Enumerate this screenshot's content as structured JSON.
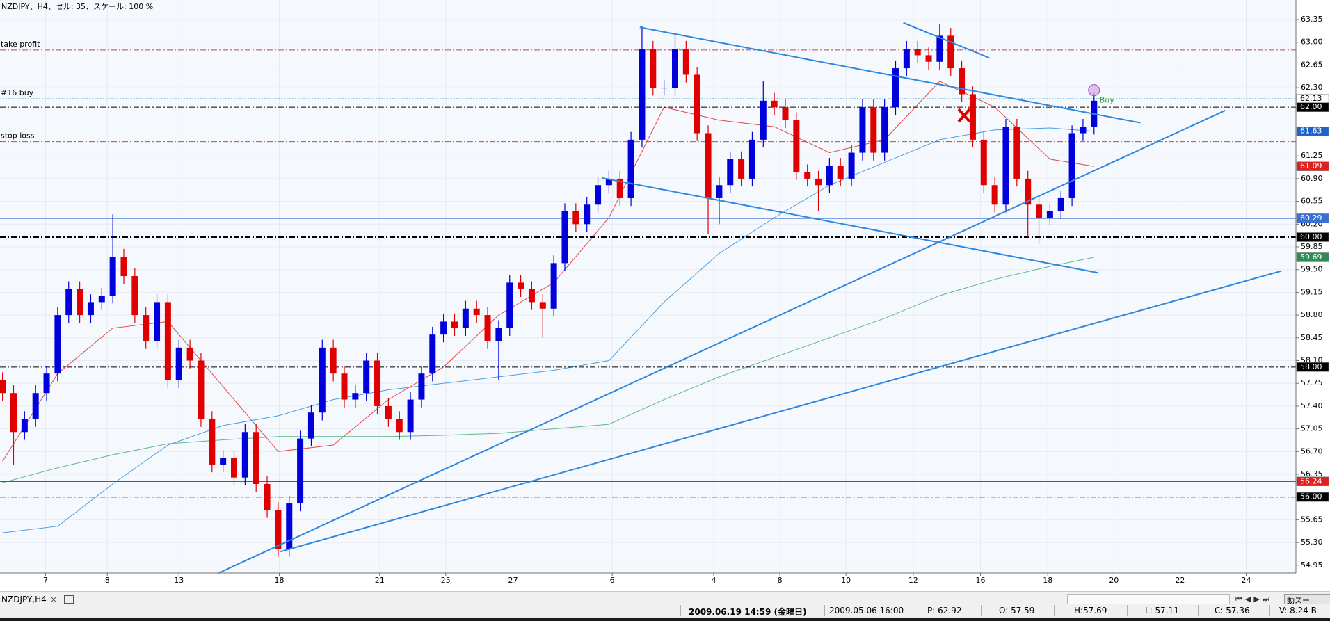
{
  "chart_data": {
    "type": "candlestick",
    "title": "NZDJPY、H4、セル: 35、スケール: 100 %",
    "xlim": [
      -0.23,
      117.31
    ],
    "ylim": [
      54.83,
      63.65
    ],
    "xticks": [
      {
        "value": 3.9,
        "label": "7"
      },
      {
        "value": 9.5,
        "label": "8"
      },
      {
        "value": 16,
        "label": "13"
      },
      {
        "value": 25.1,
        "label": "18"
      },
      {
        "value": 34.2,
        "label": "21"
      },
      {
        "value": 40.2,
        "label": "25"
      },
      {
        "value": 46.3,
        "label": "27"
      },
      {
        "value": 55.3,
        "label": "6"
      },
      {
        "value": 64.5,
        "label": "4"
      },
      {
        "value": 70.5,
        "label": "8"
      },
      {
        "value": 76.5,
        "label": "10"
      },
      {
        "value": 82.6,
        "label": "12"
      },
      {
        "value": 88.7,
        "label": "16"
      },
      {
        "value": 94.8,
        "label": "18"
      },
      {
        "value": 100.8,
        "label": "20"
      },
      {
        "value": 106.8,
        "label": "22"
      },
      {
        "value": 112.8,
        "label": "24"
      }
    ],
    "yticks": [
      63.35,
      {
        "value": 63,
        "label": "63.00"
      },
      62.65,
      {
        "value": 62.3,
        "label": "62.30"
      },
      61.25,
      {
        "value": 60.9,
        "label": "60.90"
      },
      60.55,
      {
        "value": 60.2,
        "label": "60.20"
      },
      59.85,
      {
        "value": 59.5,
        "label": "59.50"
      },
      59.15,
      {
        "value": 58.8,
        "label": "58.80"
      },
      58.45,
      {
        "value": 58.1,
        "label": "58.10"
      },
      57.75,
      {
        "value": 57.4,
        "label": "57.40"
      },
      57.05,
      {
        "value": 56.7,
        "label": "56.70"
      },
      56.35,
      55.65,
      {
        "value": 55.3,
        "label": "55.30"
      },
      54.95
    ],
    "grid": true,
    "up_color": "#0000dd",
    "down_color": "#e00000",
    "open": [
      57.8,
      57.6,
      57.0,
      57.2,
      57.6,
      57.9,
      58.8,
      59.2,
      58.8,
      59.0,
      59.1,
      59.7,
      59.4,
      58.8,
      58.4,
      59.0,
      57.8,
      58.3,
      58.1,
      57.2,
      56.5,
      56.6,
      56.3,
      57.0,
      56.2,
      55.8,
      55.2,
      55.9,
      56.9,
      57.3,
      58.3,
      57.9,
      57.5,
      57.6,
      58.1,
      57.4,
      57.2,
      57.0,
      57.5,
      57.9,
      58.5,
      58.7,
      58.6,
      58.9,
      58.8,
      58.4,
      58.6,
      59.3,
      59.2,
      59.0,
      58.9,
      59.6,
      60.4,
      60.2,
      60.5,
      60.8,
      60.9,
      60.6,
      61.5,
      62.9,
      62.3,
      62.3,
      62.9,
      62.5,
      61.6,
      60.6,
      60.8,
      61.2,
      60.9,
      61.5,
      62.1,
      62.0,
      61.8,
      61.0,
      60.9,
      60.8,
      61.1,
      60.9,
      61.3,
      62.0,
      61.3,
      62.0,
      62.6,
      62.9,
      62.8,
      62.7,
      63.1,
      62.6,
      62.2,
      61.5,
      60.8,
      60.5,
      61.7,
      60.9,
      60.5,
      60.3,
      60.4,
      60.6,
      61.6,
      61.7
    ],
    "high": [
      57.92,
      57.72,
      57.32,
      57.72,
      58.02,
      58.92,
      59.32,
      59.32,
      59.12,
      59.22,
      60.35,
      59.82,
      59.52,
      58.92,
      59.12,
      59.12,
      58.42,
      58.42,
      58.22,
      57.32,
      56.72,
      56.72,
      57.12,
      57.12,
      56.32,
      55.92,
      56.02,
      57.02,
      57.42,
      58.42,
      58.42,
      58.02,
      57.72,
      58.22,
      58.22,
      57.52,
      57.32,
      57.62,
      58.02,
      58.62,
      58.82,
      58.82,
      59.02,
      59.02,
      58.92,
      58.72,
      59.42,
      59.42,
      59.32,
      59.12,
      59.72,
      60.52,
      60.52,
      60.62,
      60.92,
      61.02,
      61.02,
      61.62,
      63.25,
      63.02,
      62.42,
      63.1,
      63.02,
      62.62,
      61.72,
      60.92,
      61.32,
      61.32,
      61.62,
      62.4,
      62.22,
      62.12,
      61.92,
      61.12,
      61.02,
      61.22,
      61.22,
      61.42,
      62.12,
      62.12,
      62.12,
      62.72,
      63.02,
      63.02,
      62.92,
      63.28,
      63.22,
      62.72,
      62.32,
      61.62,
      60.92,
      61.82,
      61.82,
      61.02,
      60.62,
      60.52,
      60.72,
      61.72,
      61.82,
      62.22
    ],
    "low": [
      57.48,
      56.5,
      56.88,
      57.08,
      57.48,
      57.78,
      58.68,
      58.68,
      58.68,
      58.88,
      58.98,
      59.28,
      58.68,
      58.28,
      58.28,
      57.68,
      57.68,
      57.98,
      57.08,
      56.38,
      56.38,
      56.18,
      56.18,
      56.08,
      55.68,
      55.08,
      55.08,
      55.78,
      56.78,
      57.18,
      57.78,
      57.38,
      57.38,
      57.48,
      57.28,
      57.08,
      56.88,
      56.88,
      57.38,
      57.78,
      58.38,
      58.48,
      58.48,
      58.68,
      58.28,
      57.8,
      58.48,
      59.08,
      58.88,
      58.45,
      58.78,
      59.48,
      60.08,
      60.08,
      60.38,
      60.68,
      60.48,
      60.48,
      61.38,
      62.18,
      62.18,
      62.18,
      62.38,
      61.48,
      60.05,
      60.2,
      60.68,
      60.78,
      60.78,
      61.38,
      61.88,
      61.68,
      60.88,
      60.78,
      60.4,
      60.68,
      60.78,
      60.78,
      61.18,
      61.18,
      61.18,
      61.88,
      62.48,
      62.68,
      62.58,
      62.58,
      62.48,
      62.08,
      61.38,
      60.68,
      60.38,
      60.38,
      60.78,
      60.0,
      59.9,
      60.18,
      60.28,
      60.48,
      61.48,
      61.58
    ],
    "close": [
      57.6,
      57.0,
      57.2,
      57.6,
      57.9,
      58.8,
      59.2,
      58.8,
      59.0,
      59.1,
      59.7,
      59.4,
      58.8,
      58.4,
      59.0,
      57.8,
      58.3,
      58.1,
      57.2,
      56.5,
      56.6,
      56.3,
      57.0,
      56.2,
      55.8,
      55.2,
      55.9,
      56.9,
      57.3,
      58.3,
      57.9,
      57.5,
      57.6,
      58.1,
      57.4,
      57.2,
      57.0,
      57.5,
      57.9,
      58.5,
      58.7,
      58.6,
      58.9,
      58.8,
      58.4,
      58.6,
      59.3,
      59.2,
      59.0,
      58.9,
      59.6,
      60.4,
      60.2,
      60.5,
      60.8,
      60.9,
      60.6,
      61.5,
      62.9,
      62.3,
      62.3,
      62.9,
      62.5,
      61.6,
      60.6,
      60.8,
      61.2,
      60.9,
      61.5,
      62.1,
      62.0,
      61.8,
      61.0,
      60.9,
      60.8,
      61.1,
      60.9,
      61.3,
      62.0,
      61.3,
      62.0,
      62.6,
      62.9,
      62.8,
      62.7,
      63.1,
      62.6,
      62.2,
      61.5,
      60.8,
      60.5,
      61.7,
      60.9,
      60.5,
      60.3,
      60.4,
      60.6,
      61.6,
      61.7,
      62.1
    ],
    "moving_averages": [
      {
        "color": "#e04848",
        "x": [
          0,
          5,
          10,
          15,
          20,
          25,
          30,
          35,
          40,
          45,
          50,
          55,
          60,
          65,
          70,
          75,
          80,
          85,
          90,
          95,
          99
        ],
        "values": [
          56.55,
          57.9,
          58.6,
          58.7,
          57.7,
          56.7,
          56.8,
          57.5,
          58.0,
          58.8,
          59.3,
          60.3,
          62.0,
          61.8,
          61.7,
          61.3,
          61.5,
          62.4,
          62.0,
          61.2,
          61.09
        ]
      },
      {
        "color": "#4a9fe0",
        "x": [
          0,
          5,
          10,
          15,
          20,
          25,
          30,
          35,
          40,
          45,
          50,
          55,
          60,
          65,
          70,
          75,
          80,
          85,
          90,
          95,
          99
        ],
        "values": [
          55.45,
          55.55,
          56.2,
          56.8,
          57.1,
          57.25,
          57.5,
          57.65,
          57.75,
          57.85,
          57.95,
          58.1,
          59.0,
          59.75,
          60.3,
          60.8,
          61.15,
          61.5,
          61.65,
          61.68,
          61.63
        ]
      },
      {
        "color": "#5cb88a",
        "x": [
          0,
          5,
          10,
          15,
          20,
          25,
          30,
          35,
          40,
          45,
          50,
          55,
          60,
          65,
          70,
          75,
          80,
          85,
          90,
          95,
          99
        ],
        "values": [
          56.22,
          56.45,
          56.65,
          56.82,
          56.88,
          56.93,
          56.93,
          56.93,
          56.95,
          56.98,
          57.05,
          57.12,
          57.5,
          57.85,
          58.15,
          58.45,
          58.75,
          59.1,
          59.35,
          59.55,
          59.69
        ]
      }
    ],
    "trendlines": [
      {
        "color": "#2e86de",
        "x": [
          57.8,
          103.2
        ],
        "values": [
          63.23,
          61.76
        ]
      },
      {
        "color": "#2e86de",
        "x": [
          54.4,
          99.4
        ],
        "values": [
          60.91,
          59.45
        ]
      },
      {
        "color": "#2e86de",
        "x": [
          81.7,
          89.5
        ],
        "values": [
          63.3,
          62.76
        ]
      },
      {
        "color": "#2e86de",
        "x": [
          19.6,
          110.9
        ],
        "values": [
          54.83,
          61.95
        ]
      },
      {
        "color": "#2e86de",
        "x": [
          25.2,
          116
        ],
        "values": [
          55.16,
          59.48
        ]
      }
    ],
    "levels": [
      {
        "value": 62.88,
        "color": "#d04050",
        "dash": "dashdot",
        "width": 1,
        "label": "take profit"
      },
      {
        "value": 62.13,
        "color": "#3aa0c8",
        "dash": "dotted",
        "width": 1,
        "label": "#16 buy"
      },
      {
        "value": 62,
        "color": "#000000",
        "dash": "dashdot",
        "width": 1
      },
      {
        "value": 61.47,
        "color": "#d04050",
        "dash": "dashdot",
        "width": 1,
        "label": "stop loss"
      },
      {
        "value": 60.29,
        "color": "#3b6fd4",
        "dash": "solid",
        "width": 1.5
      },
      {
        "value": 60,
        "color": "#000000",
        "dash": "dashdot",
        "width": 2
      },
      {
        "value": 58,
        "color": "#000000",
        "dash": "dashdot",
        "width": 1
      },
      {
        "value": 56.24,
        "color": "#e02020",
        "dash": "solid",
        "width": 1.5
      },
      {
        "value": 56,
        "color": "#000000",
        "dash": "dashdot",
        "width": 1
      }
    ],
    "price_markers": [
      {
        "value": 62.13,
        "bg": "#ffffff",
        "fg": "#000000"
      },
      {
        "value": 62,
        "label": "62.00",
        "bg": "#000000",
        "fg": "#ffffff"
      },
      {
        "value": 61.63,
        "bg": "#1e64c8",
        "fg": "#ffffff"
      },
      {
        "value": 61.09,
        "bg": "#e02020",
        "fg": "#ffffff"
      },
      {
        "value": 60.29,
        "bg": "#3b6fd4",
        "fg": "#ffffff"
      },
      {
        "value": 60,
        "label": "60.00",
        "bg": "#000000",
        "fg": "#ffffff"
      },
      {
        "value": 59.69,
        "bg": "#2e8b57",
        "fg": "#ffffff"
      },
      {
        "value": 58,
        "label": "58.00",
        "bg": "#000000",
        "fg": "#ffffff"
      },
      {
        "value": 56.24,
        "bg": "#e02020",
        "fg": "#ffffff"
      },
      {
        "value": 56,
        "label": "56.00",
        "bg": "#000000",
        "fg": "#ffffff"
      }
    ],
    "buy_label": "Buy"
  },
  "tab": {
    "label": "NZDJPY,H4",
    "close": "×"
  },
  "autoscroll_button": "動スー",
  "status_bar": {
    "time": "2009.06.19 14:59 (金曜日)",
    "cursor_time": "2009.05.06 16:00",
    "price": "P: 62.92",
    "open": "O: 57.59",
    "high": "H:57.69",
    "low": "L: 57.11",
    "close": "C: 57.36",
    "volume": "V: 8.24 B"
  }
}
